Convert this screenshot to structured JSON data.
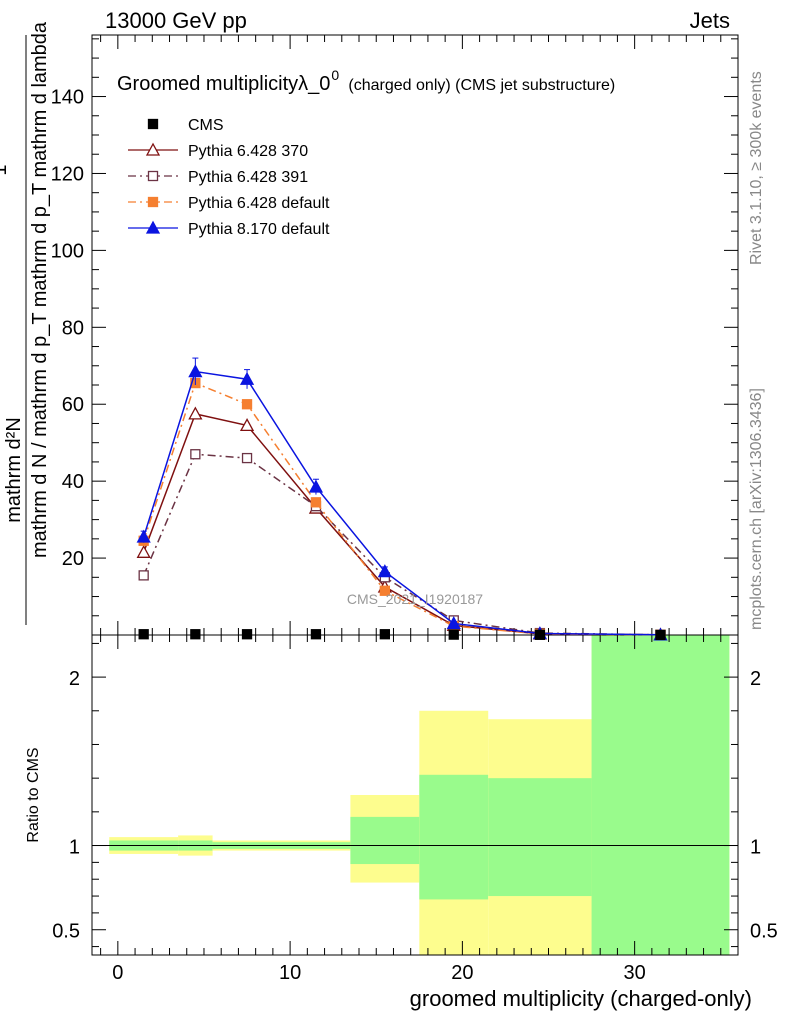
{
  "header": {
    "left": "13000 GeV pp",
    "right": "Jets"
  },
  "side": {
    "rivet": "Rivet 3.1.10, ≥ 300k events",
    "mcplots": "mcplots.cern.ch [arXiv:1306.3436]"
  },
  "chart_data": [
    {
      "type": "line",
      "title": "Groomed multiplicityλ_0",
      "title_sup": "0",
      "title_suffix": "(charged only) (CMS jet substructure)",
      "ylabel_numerator": "mathrm d²N",
      "ylabel_denominator": "mathrm d N / mathrm d p_T mathrm d p_T mathrm d lambda",
      "ylabel_prefix": "1",
      "watermark": "CMS_2021_I1920187",
      "ylim": [
        0,
        156
      ],
      "yticks": [
        20,
        40,
        60,
        80,
        100,
        120,
        140
      ],
      "xlim": [
        -1.5,
        36
      ],
      "legend_position": "top-left",
      "legend": [
        {
          "name": "CMS",
          "color": "#000000",
          "marker": "square-filled",
          "dash": "solid"
        },
        {
          "name": "Pythia 6.428 370",
          "color": "#7f1010",
          "marker": "triangle-open",
          "dash": "solid"
        },
        {
          "name": "Pythia 6.428 391",
          "color": "#6b3344",
          "marker": "square-open",
          "dash": "dashdot"
        },
        {
          "name": "Pythia 6.428 default",
          "color": "#f57f30",
          "marker": "square-filled",
          "dash": "dashdot"
        },
        {
          "name": "Pythia 8.170 default",
          "color": "#0a14e0",
          "marker": "triangle-filled",
          "dash": "solid"
        }
      ],
      "cms": {
        "x": [
          1.5,
          4.5,
          7.5,
          11.5,
          15.5,
          19.5,
          24.5,
          31.5
        ],
        "y": [
          0.2,
          0.2,
          0.2,
          0.2,
          0.2,
          0.1,
          0.05,
          0.02
        ]
      },
      "series": [
        {
          "name": "Pythia 6.428 370",
          "x": [
            1.5,
            4.5,
            7.5,
            11.5,
            15.5,
            19.5,
            24.5,
            31.5
          ],
          "y": [
            21.5,
            57.5,
            54.5,
            33.0,
            12.5,
            2.5,
            0.3,
            0.05
          ]
        },
        {
          "name": "Pythia 6.428 391",
          "x": [
            1.5,
            4.5,
            7.5,
            11.5,
            15.5,
            19.5,
            24.5,
            31.5
          ],
          "y": [
            15.5,
            47.0,
            46.0,
            33.5,
            15.0,
            3.8,
            0.5,
            0.05
          ]
        },
        {
          "name": "Pythia 6.428 default",
          "x": [
            1.5,
            4.5,
            7.5,
            11.5,
            15.5,
            19.5,
            24.5,
            31.5
          ],
          "y": [
            24.5,
            65.5,
            60.0,
            34.5,
            11.5,
            2.3,
            0.3,
            0.05
          ]
        },
        {
          "name": "Pythia 8.170 default",
          "x": [
            1.5,
            4.5,
            7.5,
            11.5,
            15.5,
            19.5,
            24.5,
            31.5
          ],
          "y": [
            25.5,
            68.5,
            66.5,
            38.5,
            16.5,
            3.0,
            0.4,
            0.05
          ],
          "err": [
            1.5,
            3.5,
            2.5,
            2.0,
            1.2,
            0.5,
            0.1,
            0.02
          ]
        }
      ]
    },
    {
      "type": "area",
      "ylabel": "Ratio to CMS",
      "xlabel": "groomed multiplicity (charged-only)",
      "ylim": [
        0.35,
        2.25
      ],
      "yticks": [
        0.5,
        1,
        2
      ],
      "xticks": [
        0,
        10,
        20,
        30
      ],
      "reference": 1,
      "bands": [
        {
          "xlo": -0.5,
          "xhi": 3.5,
          "yellow": [
            0.95,
            1.05
          ],
          "green": [
            0.97,
            1.03
          ]
        },
        {
          "xlo": 3.5,
          "xhi": 5.5,
          "yellow": [
            0.94,
            1.06
          ],
          "green": [
            0.97,
            1.03
          ]
        },
        {
          "xlo": 5.5,
          "xhi": 9.5,
          "yellow": [
            0.97,
            1.03
          ],
          "green": [
            0.98,
            1.02
          ]
        },
        {
          "xlo": 9.5,
          "xhi": 13.5,
          "yellow": [
            0.97,
            1.03
          ],
          "green": [
            0.98,
            1.02
          ]
        },
        {
          "xlo": 13.5,
          "xhi": 17.5,
          "yellow": [
            0.78,
            1.3
          ],
          "green": [
            0.89,
            1.17
          ]
        },
        {
          "xlo": 17.5,
          "xhi": 21.5,
          "yellow": [
            0.35,
            1.8
          ],
          "green": [
            0.68,
            1.42
          ]
        },
        {
          "xlo": 21.5,
          "xhi": 27.5,
          "yellow": [
            0.35,
            1.75
          ],
          "green": [
            0.7,
            1.4
          ]
        },
        {
          "xlo": 27.5,
          "xhi": 35.5,
          "yellow": [
            0.35,
            2.25
          ],
          "green": [
            0.35,
            2.25
          ]
        }
      ]
    }
  ],
  "colors": {
    "band_yellow": "#fdfd8e",
    "band_green": "#99fb8c"
  }
}
